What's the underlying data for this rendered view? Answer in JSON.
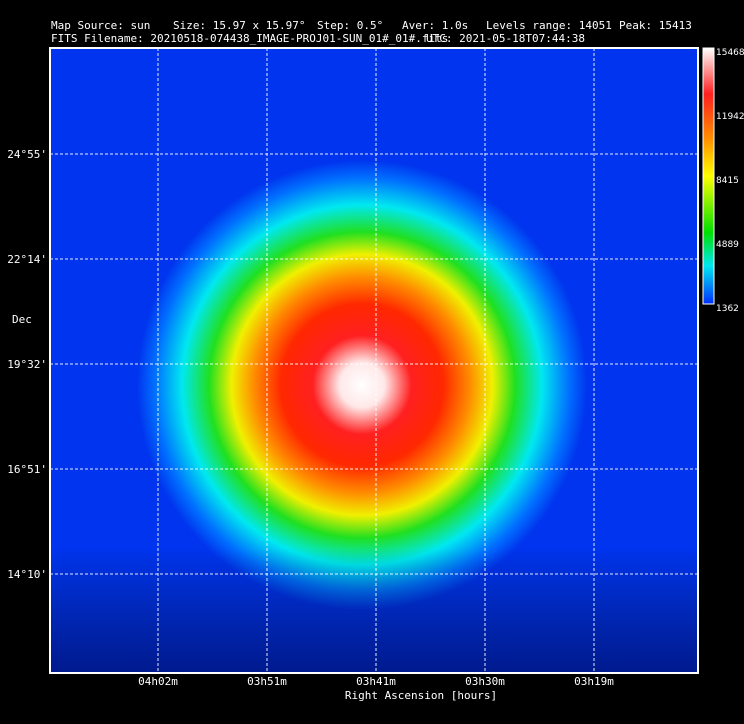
{
  "header": {
    "map_source": "Map Source:  sun",
    "size": "Size: 15.97 x 15.97°",
    "step": "Step: 0.5°",
    "aver": "Aver: 1.0s",
    "levels_range": "Levels range: 14051",
    "peak": "Peak: 15413",
    "filename": "FITS Filename: 20210518-074438_IMAGE-PROJ01-SUN_01#_01#.fits",
    "utc": "UTC: 2021-05-18T07:44:38"
  },
  "y_axis": {
    "title": "Dec",
    "labels": [
      "24°55'",
      "22°14'",
      "19°32'",
      "16°51'",
      "14°10'"
    ]
  },
  "x_axis": {
    "title": "Right Ascension [hours]",
    "labels": [
      "04h02m",
      "03h51m",
      "03h41m",
      "03h30m",
      "03h19m"
    ]
  },
  "colorbar": {
    "labels": [
      "15468",
      "11942",
      "8415",
      "4889",
      "1362"
    ]
  }
}
